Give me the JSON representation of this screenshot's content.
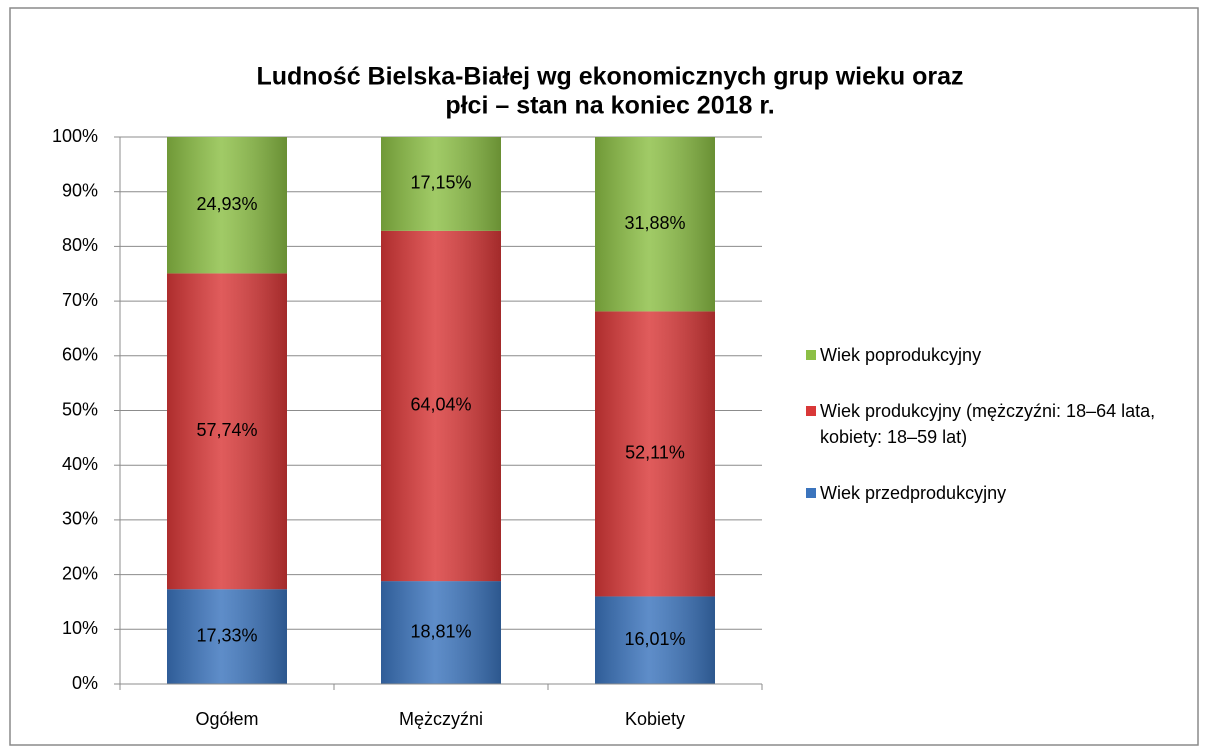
{
  "chart_data": {
    "type": "stacked_bar",
    "title": [
      "Ludność Bielska-Białej wg ekonomicznych grup wieku oraz",
      "płci – stan na koniec 2018 r."
    ],
    "categories": [
      "Ogółem",
      "Mężczyźni",
      "Kobiety"
    ],
    "series": [
      {
        "name": "Wiek przedprodukcyjny",
        "color": "#3b74bd",
        "values": [
          17.33,
          18.81,
          16.01
        ],
        "value_labels": [
          "17,33%",
          "18,81%",
          "16,01%"
        ]
      },
      {
        "name": "Wiek produkcyjny (mężczyźni: 18–64 lata, kobiety: 18–59 lat)",
        "color": "#d93838",
        "values": [
          57.74,
          64.04,
          52.11
        ],
        "value_labels": [
          "57,74%",
          "64,04%",
          "52,11%"
        ]
      },
      {
        "name": "Wiek poprodukcyjny",
        "color": "#8cbf45",
        "values": [
          24.93,
          17.15,
          31.88
        ],
        "value_labels": [
          "24,93%",
          "17,15%",
          "31,88%"
        ]
      }
    ],
    "ylim": [
      0,
      100
    ],
    "yticks": [
      {
        "value": 0,
        "label": "0%"
      },
      {
        "value": 10,
        "label": "10%"
      },
      {
        "value": 20,
        "label": "20%"
      },
      {
        "value": 30,
        "label": "30%"
      },
      {
        "value": 40,
        "label": "40%"
      },
      {
        "value": 50,
        "label": "50%"
      },
      {
        "value": 60,
        "label": "60%"
      },
      {
        "value": 70,
        "label": "70%"
      },
      {
        "value": 80,
        "label": "80%"
      },
      {
        "value": 90,
        "label": "90%"
      },
      {
        "value": 100,
        "label": "100%"
      }
    ],
    "grid": true,
    "legend": "right"
  }
}
